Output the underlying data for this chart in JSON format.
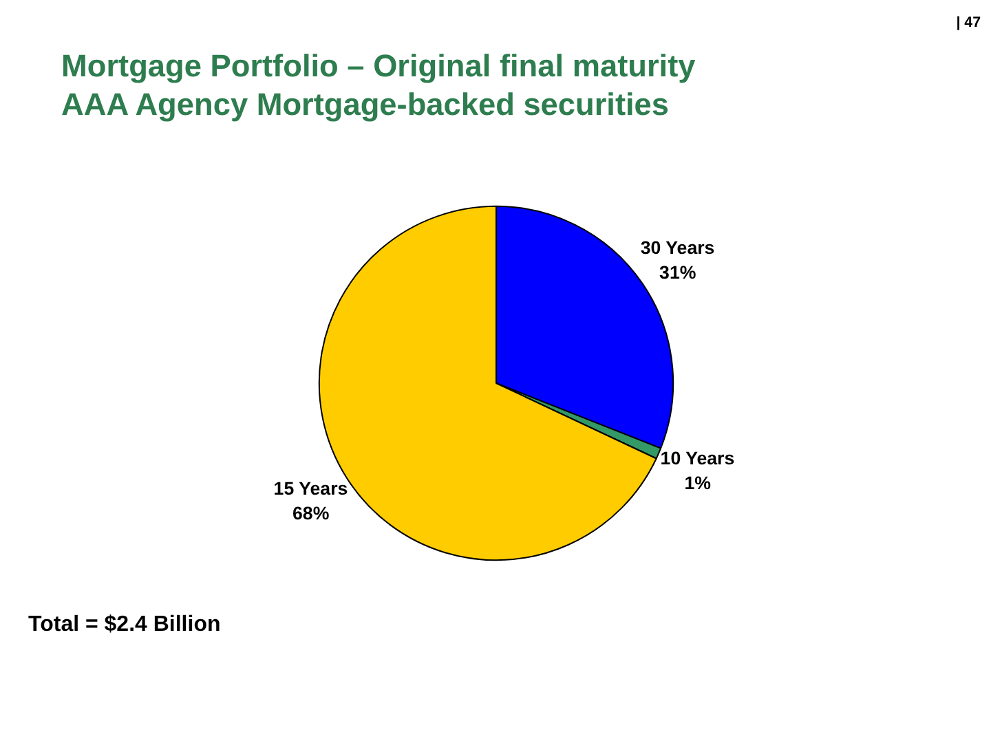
{
  "chart_data": {
    "type": "pie",
    "title": "Mortgage Portfolio – Original final maturity",
    "subtitle": "AAA Agency Mortgage-backed securities",
    "categories": [
      "30 Years",
      "10 Years",
      "15 Years"
    ],
    "values": [
      31,
      1,
      68
    ],
    "colors": [
      "#0000ff",
      "#339966",
      "#ffcc00"
    ],
    "value_labels": [
      "31%",
      "1%",
      "68%"
    ],
    "annotations": [
      "| 47",
      "Total = $2.4 Billion"
    ]
  }
}
